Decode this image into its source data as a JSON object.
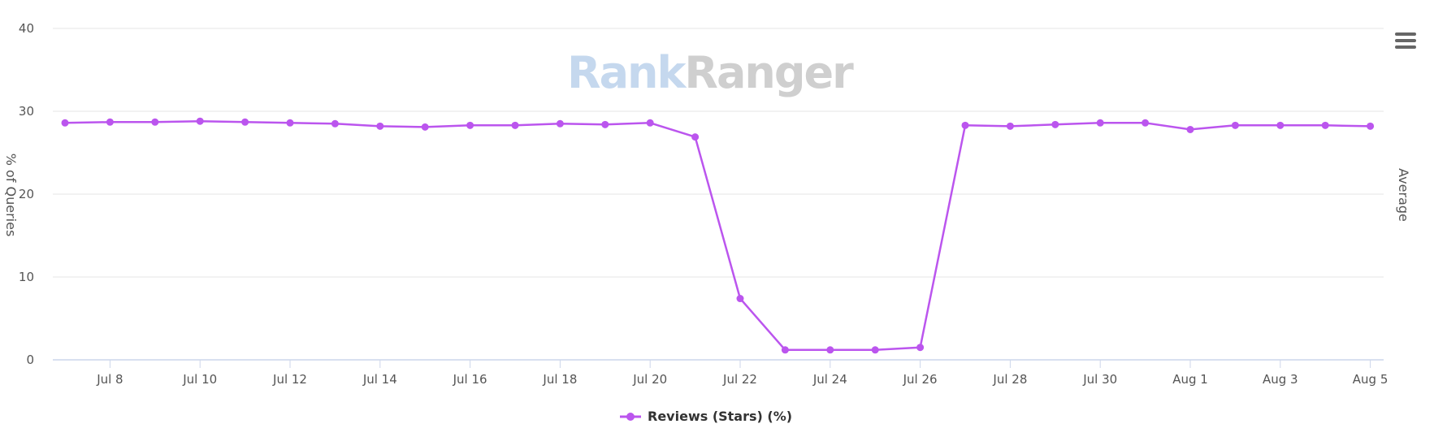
{
  "watermark": {
    "part1": "Rank",
    "part2": "Ranger"
  },
  "menu": {
    "icon": "hamburger-menu-icon"
  },
  "legend": {
    "label": "Reviews (Stars) (%)",
    "color": "#bb55ee"
  },
  "colors": {
    "series": "#bb55ee",
    "grid": "#e6e6e6",
    "axis": "#ccd6eb",
    "text": "#555555"
  },
  "chart_data": {
    "type": "line",
    "title": "",
    "xlabel": "",
    "ylabel": "% of Queries",
    "ylabel_right": "Average",
    "ylim": [
      0,
      40
    ],
    "yticks": [
      0,
      10,
      20,
      30,
      40
    ],
    "xtick_labels": [
      "Jul 8",
      "Jul 10",
      "Jul 12",
      "Jul 14",
      "Jul 16",
      "Jul 18",
      "Jul 20",
      "Jul 22",
      "Jul 24",
      "Jul 26",
      "Jul 28",
      "Jul 30",
      "Aug 1",
      "Aug 3",
      "Aug 5"
    ],
    "grid": true,
    "legend_position": "bottom",
    "x": [
      "Jul 7",
      "Jul 8",
      "Jul 9",
      "Jul 10",
      "Jul 11",
      "Jul 12",
      "Jul 13",
      "Jul 14",
      "Jul 15",
      "Jul 16",
      "Jul 17",
      "Jul 18",
      "Jul 19",
      "Jul 20",
      "Jul 21",
      "Jul 22",
      "Jul 23",
      "Jul 24",
      "Jul 25",
      "Jul 26",
      "Jul 27",
      "Jul 28",
      "Jul 29",
      "Jul 30",
      "Jul 31",
      "Aug 1",
      "Aug 2",
      "Aug 3",
      "Aug 4",
      "Aug 5"
    ],
    "series": [
      {
        "name": "Reviews (Stars) (%)",
        "values": [
          28.6,
          28.7,
          28.7,
          28.8,
          28.7,
          28.6,
          28.5,
          28.2,
          28.1,
          28.3,
          28.3,
          28.5,
          28.4,
          28.6,
          26.9,
          7.4,
          1.2,
          1.2,
          1.2,
          1.5,
          28.3,
          28.2,
          28.4,
          28.6,
          28.6,
          27.8,
          28.3,
          28.3,
          28.3,
          28.2
        ]
      }
    ]
  }
}
